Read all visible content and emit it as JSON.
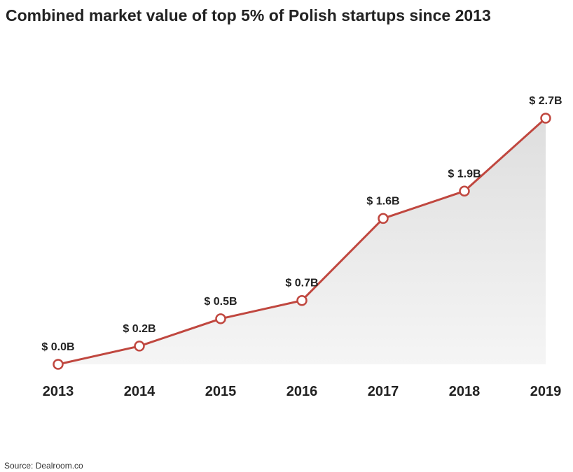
{
  "chart_data": {
    "type": "line",
    "title": "Combined market value of top 5% of Polish startups since 2013",
    "x": [
      "2013",
      "2014",
      "2015",
      "2016",
      "2017",
      "2018",
      "2019"
    ],
    "series": [
      {
        "values": [
          0.0,
          0.2,
          0.5,
          0.7,
          1.6,
          1.9,
          2.7
        ],
        "labels": [
          "$ 0.0B",
          "$ 0.2B",
          "$ 0.5B",
          "$ 0.7B",
          "$ 1.6B",
          "$ 1.9B",
          "$ 2.7B"
        ]
      }
    ],
    "ylim": [
      0,
      2.7
    ],
    "grid": false,
    "area_fill": true,
    "line_color": "#c0473f",
    "marker_fill": "#ffffff",
    "area_color": "#ebebeb"
  },
  "source": "Source: Dealroom.co"
}
